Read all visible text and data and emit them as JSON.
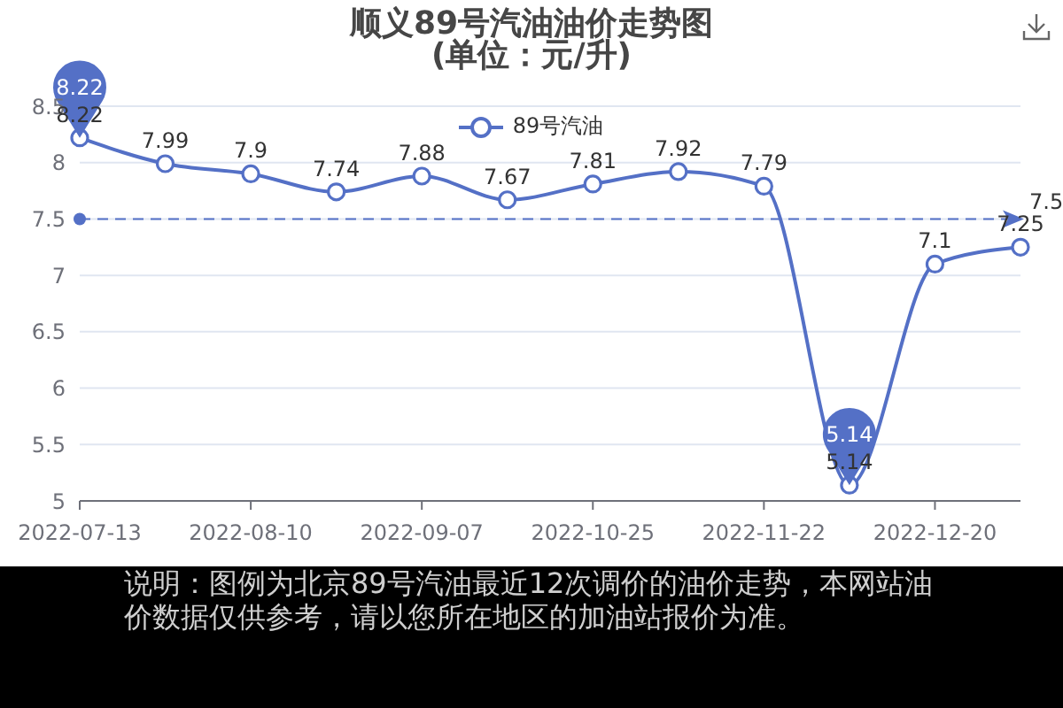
{
  "chart_data": {
    "type": "line",
    "title": "顺义89号汽油油价走势图",
    "subtitle": "(单位：元/升)",
    "categories": [
      "2022-07-13",
      null,
      "2022-08-10",
      null,
      "2022-09-07",
      null,
      "2022-10-25",
      null,
      "2022-11-22",
      null,
      "2022-12-20",
      null
    ],
    "series": [
      {
        "name": "89号汽油",
        "color": "#5470c6",
        "values": [
          8.22,
          7.99,
          7.9,
          7.74,
          7.88,
          7.67,
          7.81,
          7.92,
          7.79,
          5.14,
          7.1,
          7.25
        ]
      }
    ],
    "ylim": [
      5,
      8.5
    ],
    "yticks": [
      5,
      5.5,
      6,
      6.5,
      7,
      7.5,
      8,
      8.5
    ],
    "grid": "y",
    "legend": "top",
    "marker": "circle",
    "line_style": "solid",
    "data_labels": true,
    "ref_lines": [
      {
        "axis": "y",
        "value": 7.5,
        "label": "7.5",
        "color": "#5470c6",
        "line_style": "dashed"
      }
    ],
    "annotations": [
      {
        "text": "8.22",
        "x": "2022-07-13",
        "y": 8.22
      },
      {
        "text": "5.14",
        "y": 5.14
      },
      "说明：图例为北京89号汽油最近12次调价的油价走势，本网站油价数据仅供参考，请以您所在地区的加油站报价为准。"
    ]
  }
}
